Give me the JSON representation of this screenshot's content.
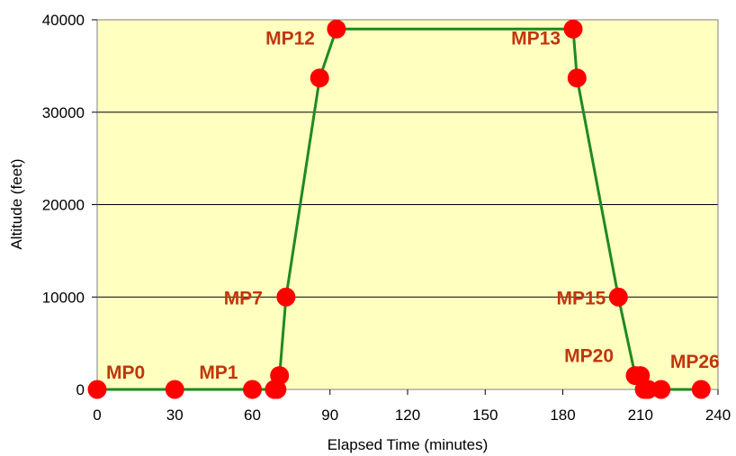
{
  "chart_data": {
    "type": "line",
    "xlabel": "Elapsed Time (minutes)",
    "ylabel": "Altitude (feet)",
    "xlim": [
      0,
      240
    ],
    "ylim": [
      0,
      40000
    ],
    "x_ticks": [
      "0",
      "30",
      "60",
      "90",
      "120",
      "150",
      "180",
      "210",
      "240"
    ],
    "y_ticks": [
      "0",
      "10000",
      "20000",
      "30000",
      "40000"
    ],
    "grid": "horizontal",
    "colors": {
      "plot_background": "#ffffc0",
      "line": "#1f8a1f",
      "marker": "#ff0000",
      "label": "#c0360c"
    },
    "series": [
      {
        "points": [
          {
            "x": 0,
            "y": 0
          },
          {
            "x": 30,
            "y": 0
          },
          {
            "x": 60,
            "y": 0
          },
          {
            "x": 68.5,
            "y": 0
          },
          {
            "x": 69.5,
            "y": 0
          },
          {
            "x": 70.5,
            "y": 1500
          },
          {
            "x": 73,
            "y": 10000
          },
          {
            "x": 86,
            "y": 33700
          },
          {
            "x": 92.5,
            "y": 39000
          },
          {
            "x": 184,
            "y": 39000
          },
          {
            "x": 185.5,
            "y": 33700
          },
          {
            "x": 201.5,
            "y": 10000
          },
          {
            "x": 208,
            "y": 1500
          },
          {
            "x": 210,
            "y": 1500
          },
          {
            "x": 211.5,
            "y": 0
          },
          {
            "x": 213,
            "y": 0
          },
          {
            "x": 218,
            "y": 0
          },
          {
            "x": 233.5,
            "y": 0
          }
        ]
      }
    ],
    "annotations": [
      {
        "text": "MP0",
        "x": 0,
        "y": 0
      },
      {
        "text": "MP1",
        "x": 60,
        "y": 0
      },
      {
        "text": "MP7",
        "x": 73,
        "y": 10000
      },
      {
        "text": "MP12",
        "x": 92.5,
        "y": 39000
      },
      {
        "text": "MP13",
        "x": 184,
        "y": 39000
      },
      {
        "text": "MP15",
        "x": 201.5,
        "y": 10000
      },
      {
        "text": "MP20",
        "x": 208,
        "y": 1500
      },
      {
        "text": "MP26",
        "x": 233.5,
        "y": 0
      }
    ]
  }
}
